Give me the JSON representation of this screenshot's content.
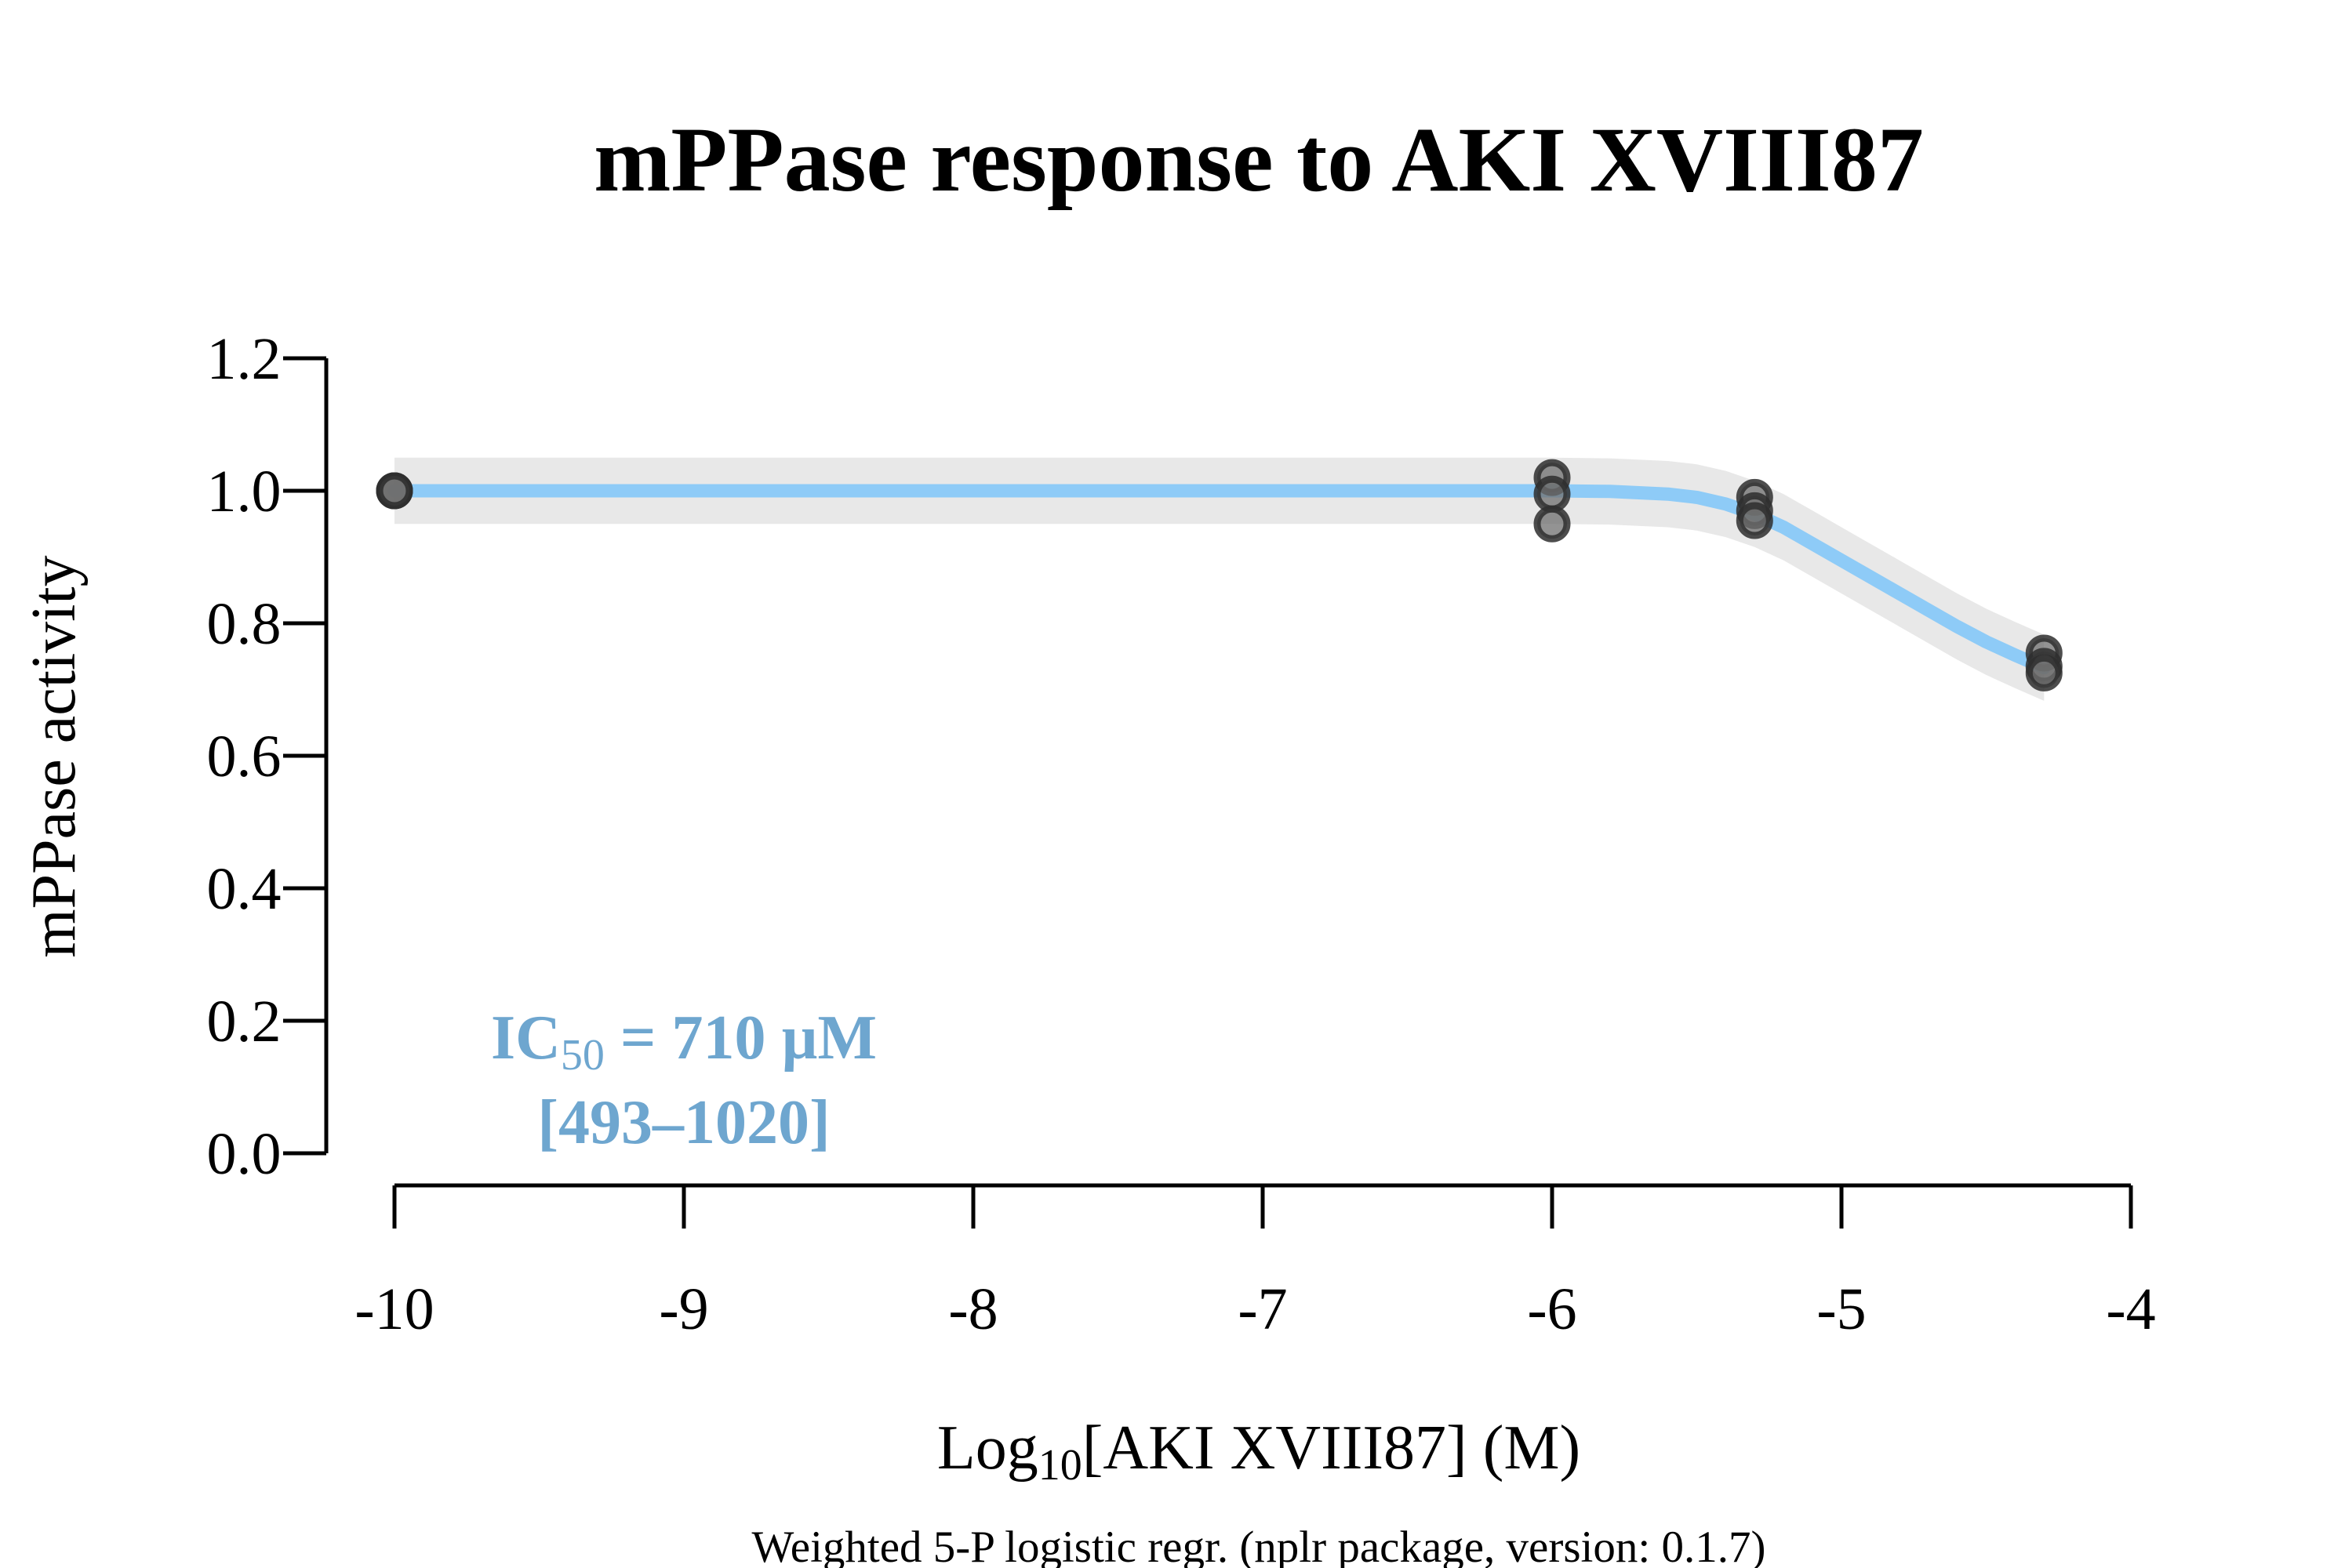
{
  "chart_data": {
    "type": "scatter",
    "title": "mPPase response to AKI XVIII87",
    "xlabel": {
      "prefix": "Log",
      "subscript": "10",
      "suffix": "[AKI XVIII87] (M)"
    },
    "ylabel": "mPPase activity",
    "subtitle": "Weighted 5-P logistic regr. (nplr package, version: 0.1.7)",
    "xlim": [
      -10,
      -4
    ],
    "ylim": [
      0,
      1.2
    ],
    "x_ticks": [
      -10,
      -9,
      -8,
      -7,
      -6,
      -5,
      -4
    ],
    "x_tick_labels": [
      "-10",
      "-9",
      "-8",
      "-7",
      "-6",
      "-5",
      "-4"
    ],
    "y_ticks": [
      0,
      0.2,
      0.4,
      0.6,
      0.8,
      1.0,
      1.2
    ],
    "y_tick_labels": [
      "0.0",
      "0.2",
      "0.4",
      "0.6",
      "0.8",
      "1.0",
      "1.2"
    ],
    "grid": false,
    "points": [
      {
        "x": -10,
        "y": 1.0
      },
      {
        "x": -10,
        "y": 1.0
      },
      {
        "x": -10,
        "y": 1.0
      },
      {
        "x": -6,
        "y": 1.02
      },
      {
        "x": -6,
        "y": 0.995
      },
      {
        "x": -6,
        "y": 0.95
      },
      {
        "x": -5.3,
        "y": 0.99
      },
      {
        "x": -5.3,
        "y": 0.97
      },
      {
        "x": -5.3,
        "y": 0.955
      },
      {
        "x": -4.3,
        "y": 0.755
      },
      {
        "x": -4.3,
        "y": 0.735
      },
      {
        "x": -4.3,
        "y": 0.725
      }
    ],
    "fit_curve": {
      "x": [
        -10,
        -9,
        -8,
        -7,
        -6.5,
        -6,
        -5.8,
        -5.6,
        -5.5,
        -5.4,
        -5.3,
        -5.2,
        -5.1,
        -5.0,
        -4.9,
        -4.8,
        -4.7,
        -4.6,
        -4.5,
        -4.4,
        -4.3
      ],
      "y": [
        1.0,
        1.0,
        1.0,
        1.0,
        1.0,
        1.0,
        0.999,
        0.995,
        0.99,
        0.98,
        0.965,
        0.945,
        0.92,
        0.895,
        0.87,
        0.845,
        0.82,
        0.795,
        0.772,
        0.752,
        0.733
      ],
      "band_halfwidth": 0.05
    },
    "annotation": {
      "ic_prefix": "IC",
      "ic_subscript": "50",
      "ic_value": " = 710 µM",
      "ci": "[493–1020]"
    },
    "colors": {
      "curve": "#8ecbf7",
      "band": "#e8e8e8",
      "point_fill": "#6f6f6f",
      "point_stroke": "#2e2e2e",
      "annotation": "#6ea6cf",
      "axis": "#000000"
    }
  }
}
